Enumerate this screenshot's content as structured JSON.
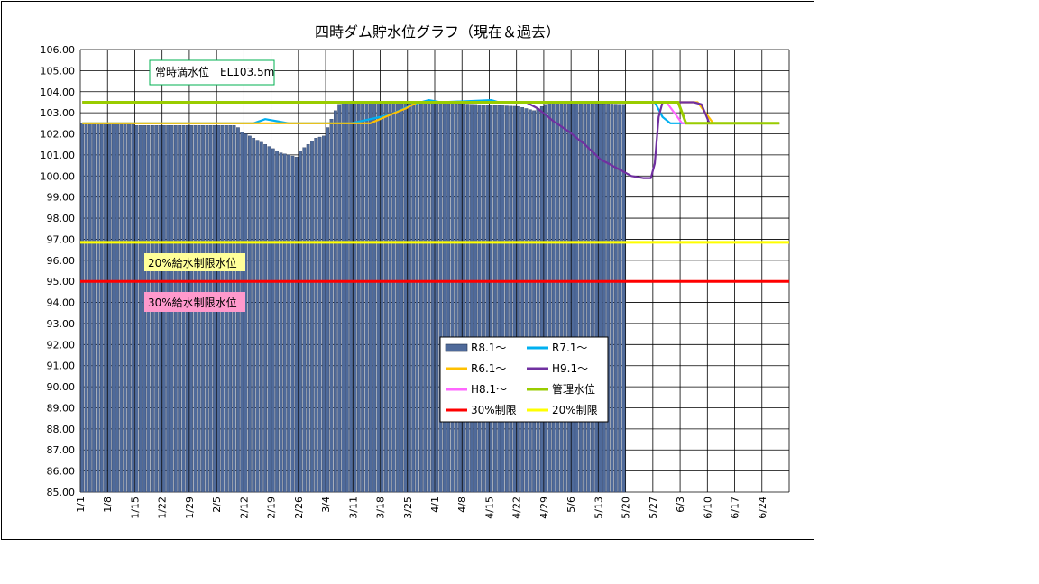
{
  "chart_data": {
    "type": "bar",
    "title": "四時ダム貯水位グラフ（現在＆過去）",
    "xlabel": "",
    "ylabel": "",
    "ylim": [
      85.0,
      106.0
    ],
    "y_ticks": [
      "85.00",
      "86.00",
      "87.00",
      "88.00",
      "89.00",
      "90.00",
      "91.00",
      "92.00",
      "93.00",
      "94.00",
      "95.00",
      "96.00",
      "97.00",
      "98.00",
      "99.00",
      "100.00",
      "101.00",
      "102.00",
      "103.00",
      "104.00",
      "105.00",
      "106.00"
    ],
    "x_tick_labels": [
      "1/1",
      "1/8",
      "1/15",
      "1/22",
      "1/29",
      "2/5",
      "2/12",
      "2/19",
      "2/26",
      "3/4",
      "3/11",
      "3/18",
      "3/25",
      "4/1",
      "4/8",
      "4/15",
      "4/22",
      "4/29",
      "5/6",
      "5/13",
      "5/20",
      "5/27",
      "6/3",
      "6/10",
      "6/17",
      "6/24"
    ],
    "grid": true,
    "legend_placement": "center-right",
    "annotations": {
      "full_level": "常時満水位　EL103.5m",
      "limit20": "20%給水制限水位",
      "limit30": "30%給水制限水位"
    },
    "reference_lines": [
      {
        "name": "管理水位",
        "color": "#99cc00",
        "value": 103.5
      },
      {
        "name": "20%制限",
        "color": "#ffff00",
        "value": 96.85
      },
      {
        "name": "30%制限",
        "color": "#ff0000",
        "value": 95.0
      }
    ],
    "bar_series": {
      "name": "R8.1～",
      "color": "#4f6a9a",
      "start_day": 1,
      "keypoints": [
        [
          1,
          102.5
        ],
        [
          14,
          102.5
        ],
        [
          15,
          102.4
        ],
        [
          20,
          102.4
        ],
        [
          32,
          102.4
        ],
        [
          40,
          102.4
        ],
        [
          41,
          102.3
        ],
        [
          42,
          102.1
        ],
        [
          44,
          101.9
        ],
        [
          46,
          101.7
        ],
        [
          48,
          101.5
        ],
        [
          50,
          101.3
        ],
        [
          52,
          101.1
        ],
        [
          54,
          101.0
        ],
        [
          56,
          100.9
        ],
        [
          57,
          101.2
        ],
        [
          59,
          101.5
        ],
        [
          61,
          101.8
        ],
        [
          63,
          101.9
        ],
        [
          64,
          102.3
        ],
        [
          65,
          102.7
        ],
        [
          66,
          103.1
        ],
        [
          67,
          103.4
        ],
        [
          69,
          103.5
        ],
        [
          80,
          103.5
        ],
        [
          90,
          103.5
        ],
        [
          113,
          103.3
        ],
        [
          115,
          103.2
        ],
        [
          117,
          103.1
        ],
        [
          119,
          103.3
        ],
        [
          121,
          103.5
        ],
        [
          140,
          103.4
        ]
      ]
    },
    "line_series": [
      {
        "name": "R7.1～",
        "color": "#00b0f0",
        "points": [
          [
            1,
            102.5
          ],
          [
            45,
            102.5
          ],
          [
            48,
            102.7
          ],
          [
            51,
            102.6
          ],
          [
            54,
            102.5
          ],
          [
            70,
            102.5
          ],
          [
            80,
            102.9
          ],
          [
            86,
            103.4
          ],
          [
            90,
            103.6
          ],
          [
            93,
            103.5
          ],
          [
            106,
            103.6
          ],
          [
            108,
            103.5
          ],
          [
            148,
            103.5
          ],
          [
            150,
            102.8
          ],
          [
            152,
            102.5
          ],
          [
            180,
            102.5
          ]
        ]
      },
      {
        "name": "R6.1～",
        "color": "#ffc000",
        "points": [
          [
            1,
            102.5
          ],
          [
            75,
            102.5
          ],
          [
            80,
            102.9
          ],
          [
            84,
            103.2
          ],
          [
            87,
            103.5
          ],
          [
            159,
            103.5
          ],
          [
            161,
            103.0
          ],
          [
            163,
            102.5
          ],
          [
            180,
            102.5
          ]
        ]
      },
      {
        "name": "H9.1～",
        "color": "#7030a0",
        "points": [
          [
            1,
            103.5
          ],
          [
            115,
            103.5
          ],
          [
            118,
            103.2
          ],
          [
            122,
            102.6
          ],
          [
            126,
            102.1
          ],
          [
            130,
            101.5
          ],
          [
            134,
            100.8
          ],
          [
            138,
            100.4
          ],
          [
            142,
            100.0
          ],
          [
            145,
            99.9
          ],
          [
            147,
            99.9
          ],
          [
            148,
            100.6
          ],
          [
            149,
            102.8
          ],
          [
            150,
            103.5
          ],
          [
            158,
            103.5
          ],
          [
            160,
            103.4
          ],
          [
            162,
            102.5
          ],
          [
            180,
            102.5
          ]
        ]
      },
      {
        "name": "H8.1～",
        "color": "#ff66ff",
        "points": [
          [
            1,
            103.5
          ],
          [
            151,
            103.5
          ],
          [
            153,
            103.0
          ],
          [
            155,
            102.5
          ],
          [
            180,
            102.5
          ]
        ]
      },
      {
        "name": "管理水位",
        "color": "#99cc00",
        "points": [
          [
            1,
            103.5
          ],
          [
            154,
            103.5
          ],
          [
            156,
            102.5
          ],
          [
            180,
            102.5
          ]
        ]
      }
    ],
    "legend": [
      {
        "label": "R8.1～",
        "type": "bar",
        "color": "#4f6a9a"
      },
      {
        "label": "R7.1～",
        "type": "line",
        "color": "#00b0f0"
      },
      {
        "label": "R6.1～",
        "type": "line",
        "color": "#ffc000"
      },
      {
        "label": "H9.1～",
        "type": "line",
        "color": "#7030a0"
      },
      {
        "label": "H8.1～",
        "type": "line",
        "color": "#ff66ff"
      },
      {
        "label": "管理水位",
        "type": "line",
        "color": "#99cc00"
      },
      {
        "label": "30%制限",
        "type": "line",
        "color": "#ff0000"
      },
      {
        "label": "20%制限",
        "type": "line",
        "color": "#ffff00"
      }
    ]
  }
}
